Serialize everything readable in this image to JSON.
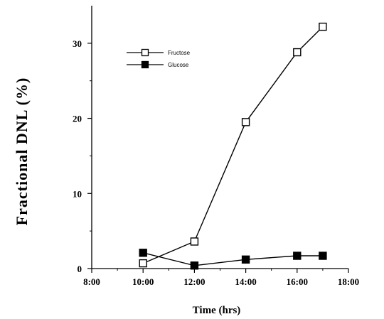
{
  "chart_data": {
    "type": "line",
    "title": "",
    "xlabel": "Time (hrs)",
    "ylabel": "Fractional DNL (%)",
    "x_ticks": [
      "8:00",
      "10:00",
      "12:00",
      "14:00",
      "16:00",
      "18:00"
    ],
    "x_tick_values": [
      8,
      10,
      12,
      14,
      16,
      18
    ],
    "y_ticks": [
      "0",
      "10",
      "20",
      "30"
    ],
    "y_tick_values": [
      0,
      10,
      20,
      30
    ],
    "xlim": [
      8,
      18
    ],
    "ylim": [
      0,
      35
    ],
    "grid": false,
    "legend_placement": "top-left",
    "series": [
      {
        "name": "Fructose",
        "marker": "open-square",
        "color": "#000000",
        "x": [
          10,
          12,
          14,
          16,
          17
        ],
        "y": [
          0.7,
          3.6,
          19.5,
          28.8,
          32.2
        ]
      },
      {
        "name": "Glucose",
        "marker": "filled-square",
        "color": "#000000",
        "x": [
          10,
          12,
          14,
          16,
          17
        ],
        "y": [
          2.1,
          0.4,
          1.2,
          1.7,
          1.7
        ]
      }
    ]
  }
}
